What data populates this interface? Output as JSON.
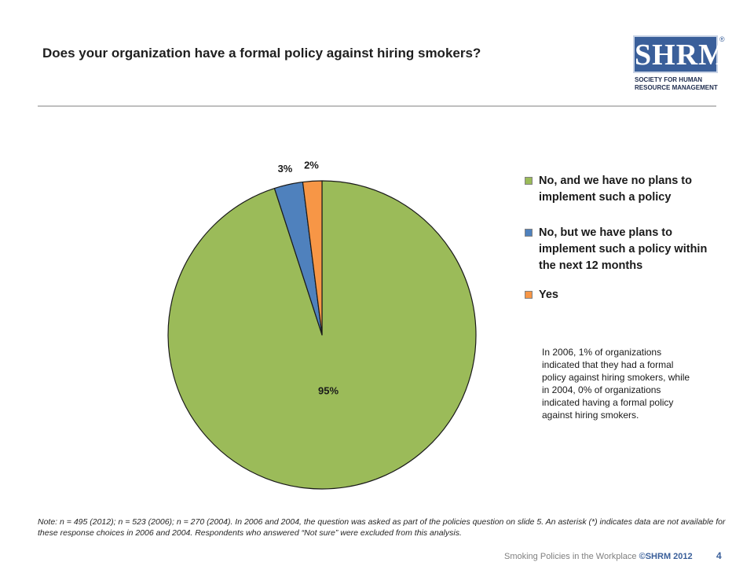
{
  "slide": {
    "title": "Does your organization  have a formal policy against hiring smokers?",
    "callout": "In 2006, 1% of organizations indicated  that they had a formal policy against hiring smokers, while in 2004, 0% of organizations indicated having a formal policy against hiring smokers.",
    "note": "Note: n = 495 (2012); n = 523 (2006); n = 270 (2004). In 2006 and 2004, the question was asked as part of the policies question on slide 5. An asterisk (*) indicates data are not available for these response choices in 2006 and 2004. Respondents who answered  “Not sure” were excluded from this analysis.",
    "footer_text": "Smoking Policies in the Workplace ",
    "footer_brand": "©SHRM 2012",
    "page_number": "4"
  },
  "logo": {
    "main": "SHRM",
    "reg": "®",
    "sub_line1": "Society for Human",
    "sub_line2": "Resource Management"
  },
  "chart_data": {
    "type": "pie",
    "title": "",
    "start_angle": "12 o'clock, clockwise",
    "slices": [
      {
        "name": "No, and we have no plans to implement such a policy",
        "value": 95,
        "label": "95%",
        "color": "#9bbb59"
      },
      {
        "name": "No, but we have plans to implement such a policy within the next 12 months",
        "value": 3,
        "label": "3%",
        "color": "#4f81bd"
      },
      {
        "name": "Yes",
        "value": 2,
        "label": "2%",
        "color": "#f79646"
      }
    ],
    "legend_position": "right"
  }
}
